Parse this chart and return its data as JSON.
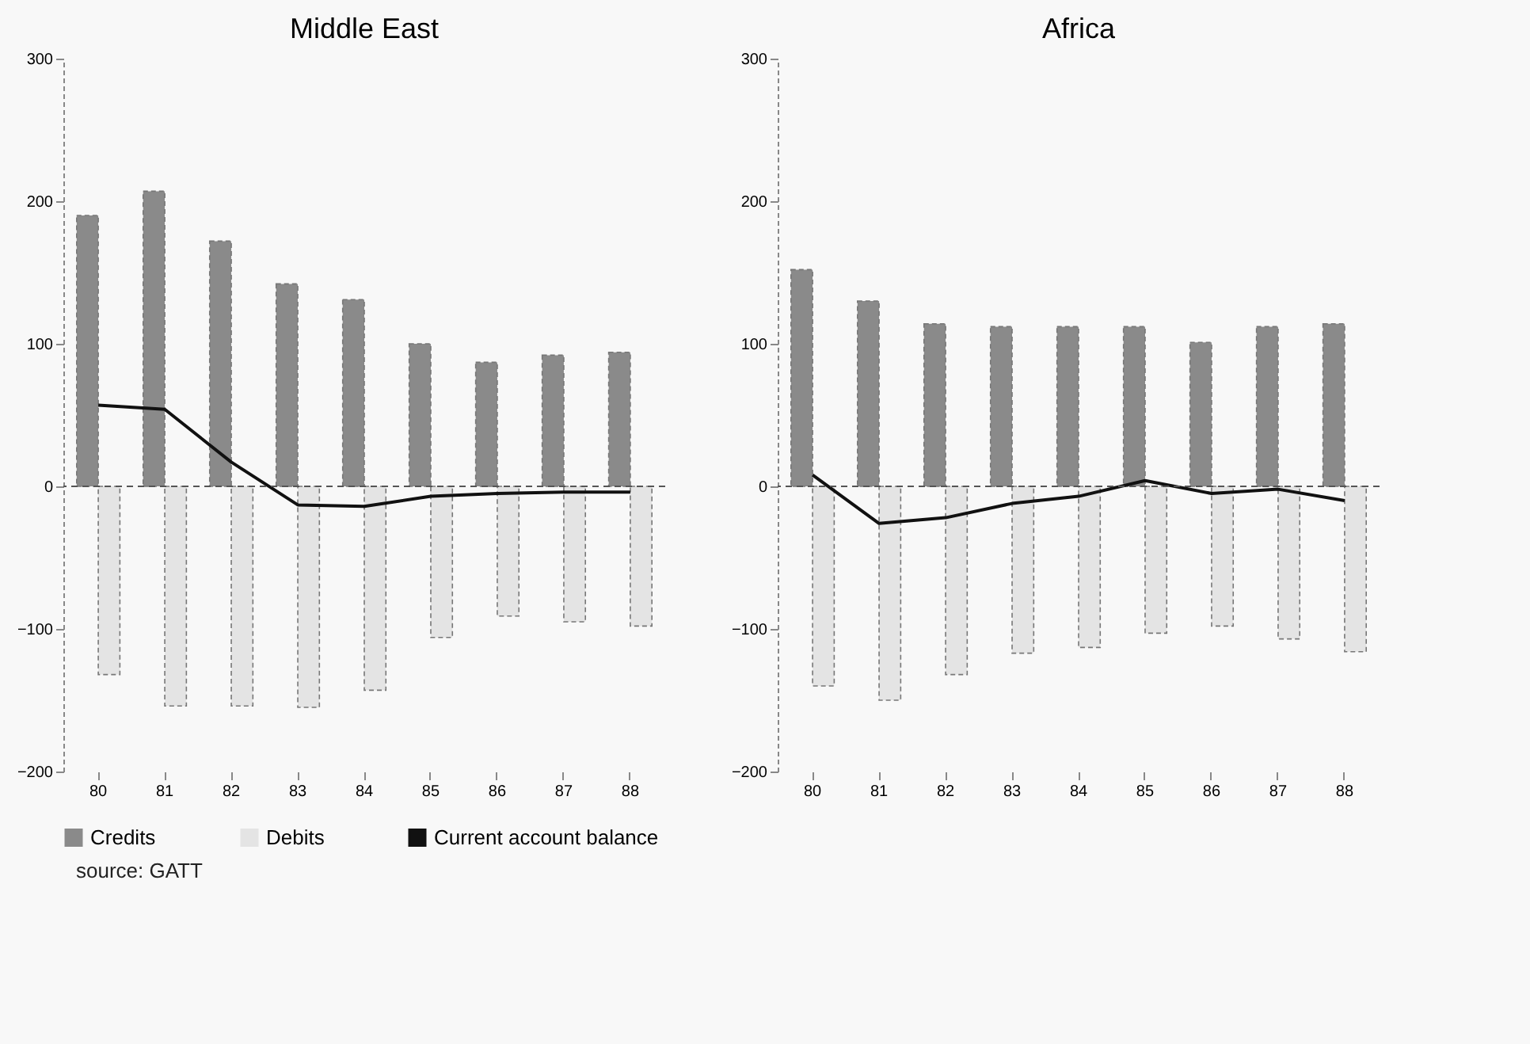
{
  "chart_data": [
    {
      "type": "bar",
      "title": "Middle East",
      "categories": [
        "80",
        "81",
        "82",
        "83",
        "84",
        "85",
        "86",
        "87",
        "88"
      ],
      "ylim": [
        -200,
        300
      ],
      "yticks": [
        -200,
        -100,
        0,
        100,
        200,
        300
      ],
      "legend": "bottom",
      "annotations": [
        "source: GATT"
      ],
      "ref_lines": [
        {
          "axis": "y",
          "value": 0,
          "color": "#555555",
          "line_style": "dashed"
        }
      ],
      "series": [
        {
          "name": "Credits",
          "color": "#8a8a8a",
          "values": [
            190,
            207,
            172,
            142,
            131,
            100,
            87,
            92,
            94
          ]
        },
        {
          "name": "Debits",
          "color": "#e4e4e4",
          "values": [
            -132,
            -154,
            -154,
            -155,
            -143,
            -106,
            -91,
            -95,
            -98
          ]
        },
        {
          "name": "Current account balance",
          "type": "line",
          "color": "#111111",
          "values": [
            57,
            54,
            17,
            -13,
            -14,
            -7,
            -5,
            -4,
            -4
          ]
        }
      ]
    },
    {
      "type": "bar",
      "title": "Africa",
      "categories": [
        "80",
        "81",
        "82",
        "83",
        "84",
        "85",
        "86",
        "87",
        "88"
      ],
      "ylim": [
        -200,
        300
      ],
      "yticks": [
        -200,
        -100,
        0,
        100,
        200,
        300
      ],
      "ref_lines": [
        {
          "axis": "y",
          "value": 0,
          "color": "#555555",
          "line_style": "dashed"
        }
      ],
      "series": [
        {
          "color": "#8a8a8a",
          "values": [
            152,
            130,
            114,
            112,
            112,
            112,
            101,
            112,
            114
          ]
        },
        {
          "color": "#e4e4e4",
          "values": [
            -140,
            -150,
            -132,
            -117,
            -113,
            -103,
            -98,
            -107,
            -116
          ]
        },
        {
          "type": "line",
          "color": "#111111",
          "values": [
            8,
            -26,
            -22,
            -12,
            -7,
            4,
            -5,
            -2,
            -10
          ]
        }
      ]
    }
  ]
}
